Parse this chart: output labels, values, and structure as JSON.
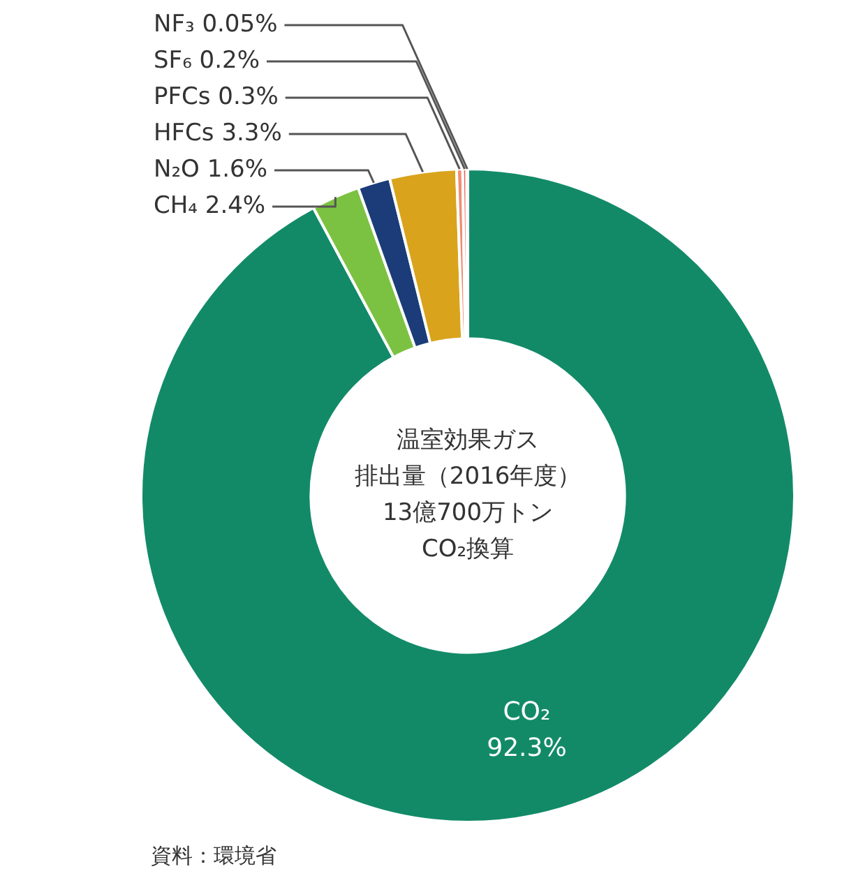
{
  "chart_data": {
    "type": "donut",
    "categories": [
      "CO₂",
      "CH₄",
      "N₂O",
      "HFCs",
      "PFCs",
      "SF₆",
      "NF₃"
    ],
    "values": [
      92.3,
      2.4,
      1.6,
      3.3,
      0.3,
      0.2,
      0.05
    ],
    "value_labels": [
      "92.3%",
      "2.4%",
      "1.6%",
      "3.3%",
      "0.3%",
      "0.2%",
      "0.05%"
    ],
    "colors": [
      "#128a68",
      "#7cc242",
      "#1b3c78",
      "#d9a31c",
      "#f08c72",
      "#e8604f",
      "#f6b2a0"
    ],
    "annotations": [
      "温室効果ガス",
      "排出量（2016年度）",
      "13億700万トン",
      "CO₂換算",
      "資料：環境省"
    ],
    "legend": false
  }
}
